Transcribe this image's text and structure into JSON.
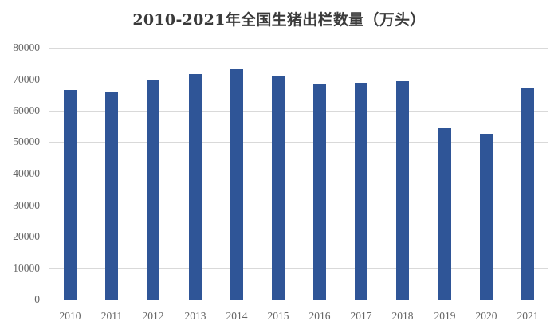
{
  "title": "2010-2021年全国生猪出栏数量（万头）",
  "colors": {
    "bar": "#2f5597",
    "grid": "#d9d9d9",
    "tick_text": "#666666",
    "title_text": "#3a3a3a"
  },
  "y_ticks": [
    "0",
    "10000",
    "20000",
    "30000",
    "40000",
    "50000",
    "60000",
    "70000",
    "80000"
  ],
  "chart_data": {
    "type": "bar",
    "title": "2010-2021年全国生猪出栏数量（万头）",
    "xlabel": "",
    "ylabel": "",
    "categories": [
      "2010",
      "2011",
      "2012",
      "2013",
      "2014",
      "2015",
      "2016",
      "2017",
      "2018",
      "2019",
      "2020",
      "2021"
    ],
    "values": [
      66686,
      66170,
      69789,
      71557,
      73510,
      70825,
      68502,
      68861,
      69382,
      54419,
      52704,
      67128
    ],
    "ylim": [
      0,
      80000
    ],
    "yticks": [
      0,
      10000,
      20000,
      30000,
      40000,
      50000,
      60000,
      70000,
      80000
    ],
    "grid": true,
    "legend": "none",
    "series": [
      {
        "name": "生猪出栏数量（万头）",
        "values": [
          66686,
          66170,
          69789,
          71557,
          73510,
          70825,
          68502,
          68861,
          69382,
          54419,
          52704,
          67128
        ]
      }
    ]
  }
}
